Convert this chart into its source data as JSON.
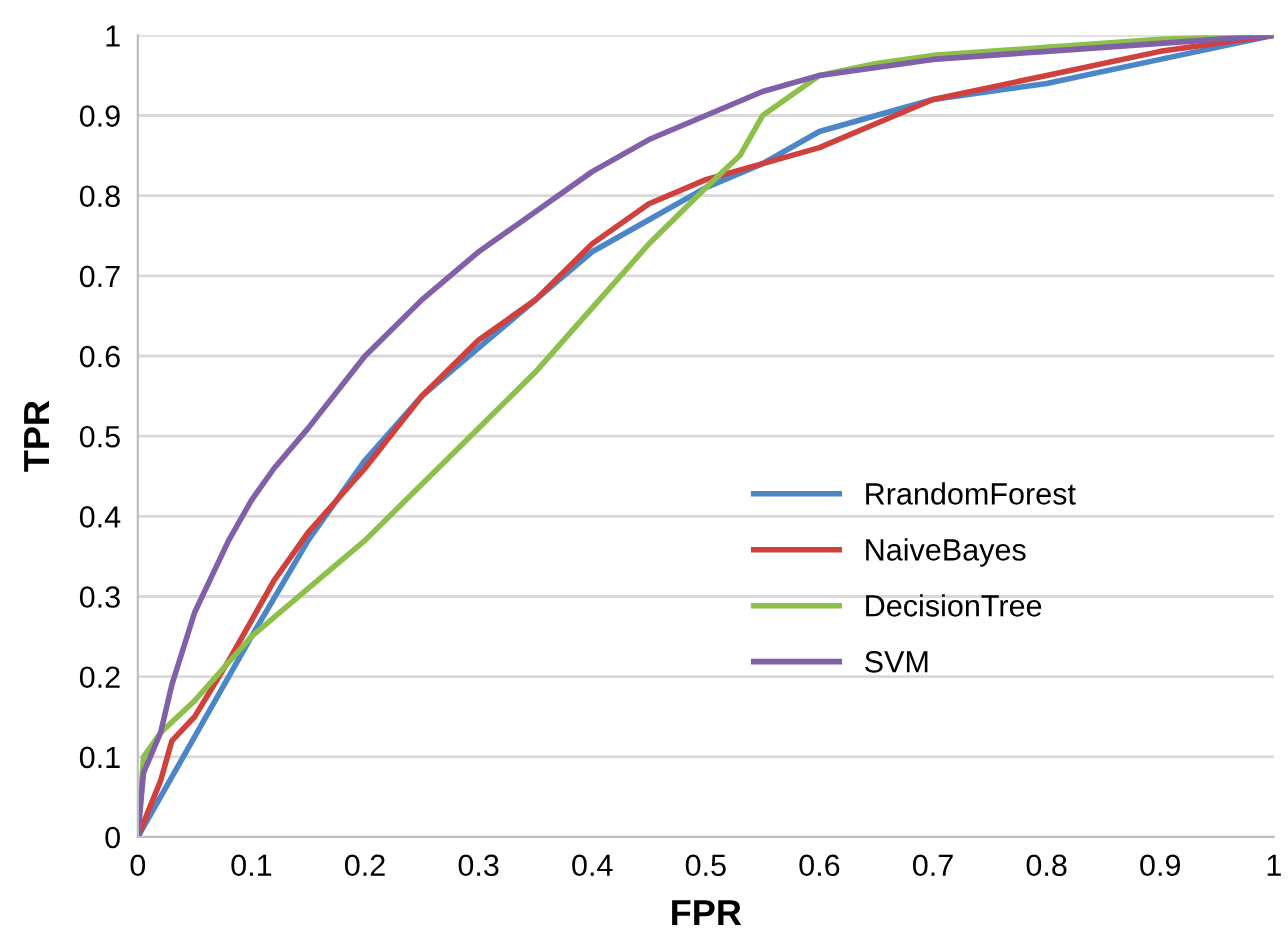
{
  "chart_data": {
    "type": "line",
    "xlabel": "FPR",
    "ylabel": "TPR",
    "xlim": [
      0,
      1
    ],
    "ylim": [
      0,
      1
    ],
    "xticks": [
      0,
      0.1,
      0.2,
      0.3,
      0.4,
      0.5,
      0.6,
      0.7,
      0.8,
      0.9,
      1
    ],
    "yticks": [
      0,
      0.1,
      0.2,
      0.3,
      0.4,
      0.5,
      0.6,
      0.7,
      0.8,
      0.9,
      1
    ],
    "grid": "y",
    "legend": "right",
    "marker": "none",
    "line_style": "solid",
    "series": [
      {
        "name": "RrandomForest",
        "color": "#4a86c8",
        "x": [
          0,
          0.1,
          0.15,
          0.2,
          0.25,
          0.3,
          0.35,
          0.4,
          0.45,
          0.5,
          0.55,
          0.6,
          0.65,
          0.7,
          0.8,
          0.9,
          1
        ],
        "values": [
          0,
          0.25,
          0.37,
          0.47,
          0.55,
          0.61,
          0.67,
          0.73,
          0.77,
          0.81,
          0.84,
          0.88,
          0.9,
          0.92,
          0.94,
          0.97,
          1
        ]
      },
      {
        "name": "NaiveBayes",
        "color": "#d0403c",
        "x": [
          0,
          0.02,
          0.03,
          0.05,
          0.08,
          0.1,
          0.12,
          0.15,
          0.2,
          0.25,
          0.3,
          0.35,
          0.4,
          0.45,
          0.5,
          0.55,
          0.6,
          0.65,
          0.7,
          0.8,
          0.9,
          1
        ],
        "values": [
          0,
          0.07,
          0.12,
          0.15,
          0.22,
          0.27,
          0.32,
          0.38,
          0.46,
          0.55,
          0.62,
          0.67,
          0.74,
          0.79,
          0.82,
          0.84,
          0.86,
          0.89,
          0.92,
          0.95,
          0.98,
          1
        ]
      },
      {
        "name": "DecisionTree",
        "color": "#8cc04a",
        "x": [
          0,
          0.005,
          0.02,
          0.05,
          0.1,
          0.15,
          0.2,
          0.25,
          0.3,
          0.35,
          0.4,
          0.45,
          0.5,
          0.53,
          0.55,
          0.58,
          0.6,
          0.65,
          0.7,
          0.8,
          0.9,
          1
        ],
        "values": [
          0,
          0.1,
          0.13,
          0.17,
          0.25,
          0.31,
          0.37,
          0.44,
          0.51,
          0.58,
          0.66,
          0.74,
          0.81,
          0.85,
          0.9,
          0.93,
          0.95,
          0.965,
          0.975,
          0.985,
          0.995,
          1
        ]
      },
      {
        "name": "SVM",
        "color": "#8060a8",
        "x": [
          0,
          0.005,
          0.02,
          0.03,
          0.05,
          0.08,
          0.1,
          0.12,
          0.15,
          0.2,
          0.25,
          0.3,
          0.35,
          0.4,
          0.45,
          0.5,
          0.55,
          0.6,
          0.7,
          0.8,
          0.9,
          1
        ],
        "values": [
          0,
          0.08,
          0.13,
          0.19,
          0.28,
          0.37,
          0.42,
          0.46,
          0.51,
          0.6,
          0.67,
          0.73,
          0.78,
          0.83,
          0.87,
          0.9,
          0.93,
          0.95,
          0.97,
          0.98,
          0.99,
          1
        ]
      }
    ]
  }
}
